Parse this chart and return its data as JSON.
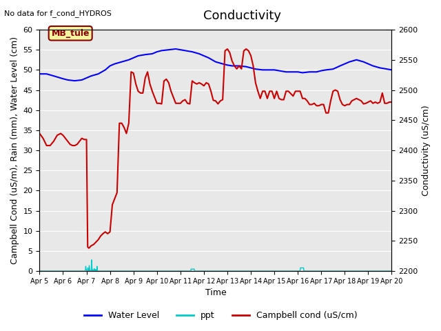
{
  "title": "Conductivity",
  "top_left_text": "No data for f_cond_HYDROS",
  "site_label": "MB_tule",
  "ylabel_left": "Campbell Cond (uS/m), Rain (mm), Water Level (cm)",
  "ylabel_right": "Conductivity (uS/cm)",
  "xlabel": "Time",
  "ylim_left": [
    0,
    60
  ],
  "ylim_right": [
    2200,
    2600
  ],
  "fig_facecolor": "#ffffff",
  "plot_bg_color": "#e8e8e8",
  "x_tick_labels": [
    "Apr 5",
    "Apr 6",
    "Apr 7",
    "Apr 8",
    "Apr 9",
    "Apr 10",
    "Apr 11",
    "Apr 12",
    "Apr 13",
    "Apr 14",
    "Apr 15",
    "Apr 16",
    "Apr 17",
    "Apr 18",
    "Apr 19",
    "Apr 20"
  ],
  "yticks_left": [
    0,
    5,
    10,
    15,
    20,
    25,
    30,
    35,
    40,
    45,
    50,
    55,
    60
  ],
  "yticks_right": [
    2200,
    2250,
    2300,
    2350,
    2400,
    2450,
    2500,
    2550,
    2600
  ],
  "water_level_x": [
    0,
    0.3,
    0.6,
    1.0,
    1.2,
    1.5,
    1.8,
    2.0,
    2.2,
    2.5,
    2.8,
    3.0,
    3.2,
    3.5,
    3.8,
    4.0,
    4.2,
    4.5,
    4.8,
    5.0,
    5.2,
    5.5,
    5.8,
    6.0,
    6.2,
    6.5,
    6.8,
    7.0,
    7.2,
    7.5,
    7.8,
    8.0,
    8.2,
    8.5,
    8.8,
    9.0,
    9.2,
    9.5,
    9.8,
    10.0,
    10.2,
    10.5,
    10.8,
    11.0,
    11.2,
    11.5,
    11.8,
    12.0,
    12.2,
    12.5,
    12.8,
    13.0,
    13.2,
    13.5,
    13.8,
    14.0,
    14.2,
    14.5,
    14.8,
    15.0
  ],
  "water_level_y": [
    49,
    49,
    48.5,
    47.8,
    47.5,
    47.3,
    47.5,
    48,
    48.5,
    49,
    50,
    51,
    51.5,
    52,
    52.5,
    53,
    53.5,
    53.8,
    54,
    54.5,
    54.8,
    55,
    55.2,
    55,
    54.8,
    54.5,
    54,
    53.5,
    53,
    52,
    51.5,
    51.2,
    51,
    51,
    50.8,
    50.5,
    50.2,
    50,
    50,
    50,
    49.8,
    49.5,
    49.5,
    49.5,
    49.3,
    49.5,
    49.5,
    49.8,
    50,
    50.2,
    51,
    51.5,
    52,
    52.5,
    52,
    51.5,
    51,
    50.5,
    50.2,
    50
  ],
  "water_level_color": "#0000ff",
  "water_level_lw": 1.5,
  "water_level_label": "Water Level",
  "campbell_x": [
    0,
    0.15,
    0.3,
    0.45,
    0.6,
    0.75,
    0.9,
    1.0,
    1.1,
    1.2,
    1.3,
    1.4,
    1.5,
    1.6,
    1.7,
    1.8,
    1.9,
    2.0,
    2.05,
    2.1,
    2.15,
    2.2,
    2.3,
    2.4,
    2.5,
    2.6,
    2.7,
    2.8,
    2.9,
    3.0,
    3.1,
    3.2,
    3.3,
    3.4,
    3.5,
    3.6,
    3.7,
    3.8,
    3.9,
    4.0,
    4.1,
    4.2,
    4.3,
    4.4,
    4.5,
    4.6,
    4.7,
    4.8,
    4.9,
    5.0,
    5.1,
    5.2,
    5.3,
    5.4,
    5.5,
    5.6,
    5.7,
    5.8,
    5.9,
    6.0,
    6.1,
    6.2,
    6.3,
    6.4,
    6.5,
    6.6,
    6.7,
    6.8,
    6.9,
    7.0,
    7.1,
    7.2,
    7.3,
    7.4,
    7.5,
    7.6,
    7.7,
    7.8,
    7.9,
    8.0,
    8.1,
    8.2,
    8.3,
    8.4,
    8.5,
    8.6,
    8.7,
    8.8,
    8.9,
    9.0,
    9.1,
    9.2,
    9.3,
    9.4,
    9.5,
    9.6,
    9.7,
    9.8,
    9.9,
    10.0,
    10.1,
    10.2,
    10.3,
    10.4,
    10.5,
    10.6,
    10.7,
    10.8,
    10.9,
    11.0,
    11.1,
    11.2,
    11.3,
    11.4,
    11.5,
    11.6,
    11.7,
    11.8,
    11.9,
    12.0,
    12.1,
    12.2,
    12.3,
    12.4,
    12.5,
    12.6,
    12.7,
    12.8,
    12.9,
    13.0,
    13.1,
    13.2,
    13.3,
    13.4,
    13.5,
    13.6,
    13.7,
    13.8,
    13.9,
    14.0,
    14.1,
    14.2,
    14.3,
    14.4,
    14.5,
    14.6,
    14.7,
    14.8,
    14.9,
    15.0
  ],
  "campbell_y": [
    2428,
    2420,
    2408,
    2408,
    2415,
    2425,
    2428,
    2425,
    2420,
    2415,
    2410,
    2408,
    2408,
    2410,
    2415,
    2420,
    2418,
    2418,
    2240,
    2238,
    2240,
    2242,
    2244,
    2248,
    2252,
    2258,
    2262,
    2265,
    2262,
    2265,
    2310,
    2320,
    2330,
    2445,
    2445,
    2438,
    2428,
    2445,
    2530,
    2528,
    2510,
    2498,
    2495,
    2495,
    2520,
    2530,
    2510,
    2498,
    2488,
    2478,
    2478,
    2477,
    2515,
    2518,
    2512,
    2498,
    2488,
    2478,
    2478,
    2478,
    2482,
    2484,
    2478,
    2477,
    2515,
    2512,
    2510,
    2512,
    2510,
    2507,
    2512,
    2510,
    2498,
    2483,
    2482,
    2477,
    2482,
    2484,
    2565,
    2568,
    2562,
    2548,
    2540,
    2535,
    2540,
    2535,
    2565,
    2568,
    2565,
    2557,
    2540,
    2512,
    2498,
    2486,
    2498,
    2498,
    2486,
    2498,
    2498,
    2486,
    2498,
    2486,
    2484,
    2484,
    2498,
    2498,
    2494,
    2490,
    2498,
    2498,
    2498,
    2486,
    2486,
    2482,
    2476,
    2476,
    2478,
    2474,
    2474,
    2476,
    2476,
    2462,
    2462,
    2482,
    2498,
    2500,
    2498,
    2484,
    2476,
    2474,
    2476,
    2476,
    2482,
    2484,
    2486,
    2484,
    2482,
    2477,
    2478,
    2480,
    2482,
    2478,
    2480,
    2478,
    2480,
    2495,
    2478,
    2478,
    2480,
    2480
  ],
  "campbell_color": "#cc0000",
  "campbell_lw": 1.5,
  "campbell_label": "Campbell cond (uS/cm)",
  "ppt_color": "#00cccc",
  "ppt_lw": 1.0,
  "ppt_label": "ppt",
  "title_fontsize": 13,
  "axis_label_fontsize": 9,
  "tick_fontsize": 8
}
